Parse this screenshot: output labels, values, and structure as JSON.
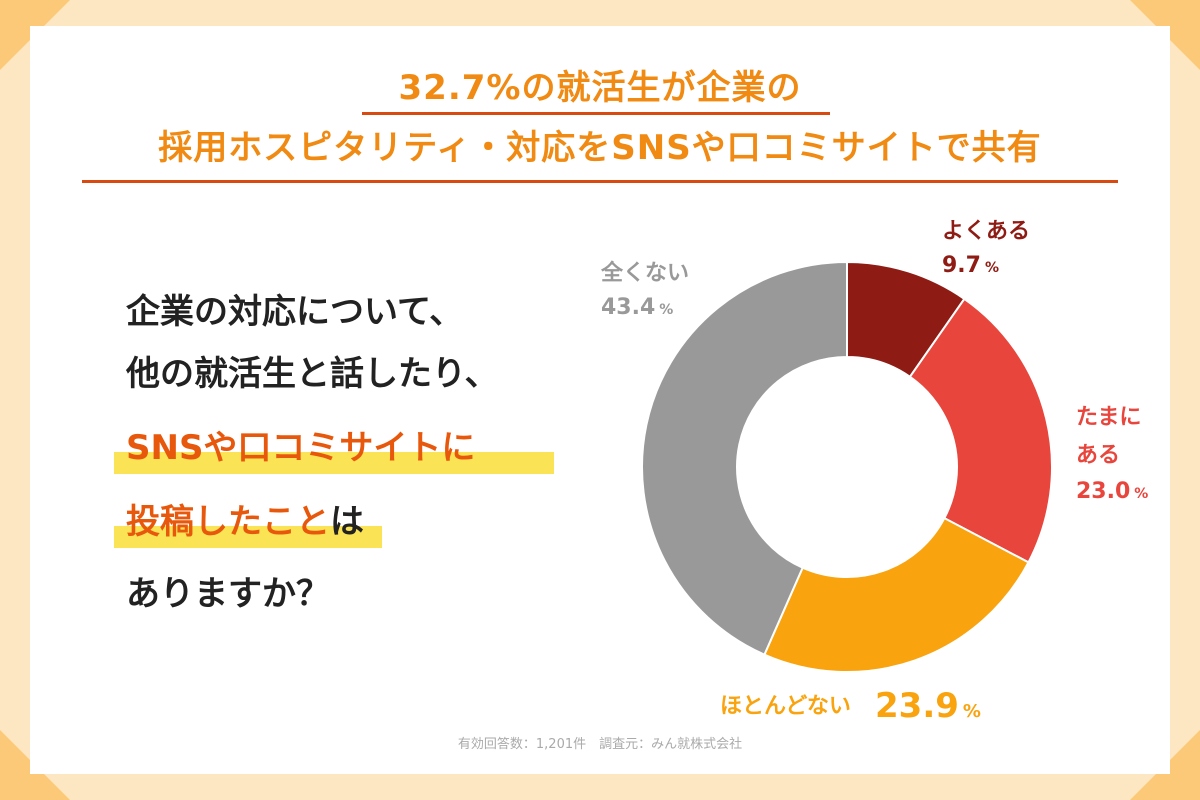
{
  "title": {
    "line1": "32.7%の就活生が企業の",
    "line2": "採用ホスピタリティ・対応をSNSや口コミサイトで共有"
  },
  "question": {
    "line1": "企業の対応について、",
    "line2": "他の就活生と話したり、",
    "line3": "SNSや口コミサイトに",
    "line4_accent": "投稿したこと",
    "line4_suffix": "は",
    "line5": "ありますか？"
  },
  "footer": "有効回答数：1,201件　調査元：みん就株式会社",
  "colors": {
    "accent": "#f08a12",
    "underline": "#d94a10",
    "highlight": "#fbe356",
    "question_accent": "#e8580c"
  },
  "chart_data": {
    "type": "pie",
    "variant": "donut",
    "slices": [
      {
        "label": "よくある",
        "value": 9.7,
        "display": "9.7",
        "unit": "%",
        "color": "#8f1c14"
      },
      {
        "label": "たまにある",
        "value": 23.0,
        "display": "23.0",
        "unit": "%",
        "color": "#e8453c"
      },
      {
        "label": "ほとんどない",
        "value": 23.9,
        "display": "23.9",
        "unit": "%",
        "color": "#f9a30f"
      },
      {
        "label": "全くない",
        "value": 43.4,
        "display": "43.4",
        "unit": "%",
        "color": "#9a9999"
      }
    ]
  }
}
